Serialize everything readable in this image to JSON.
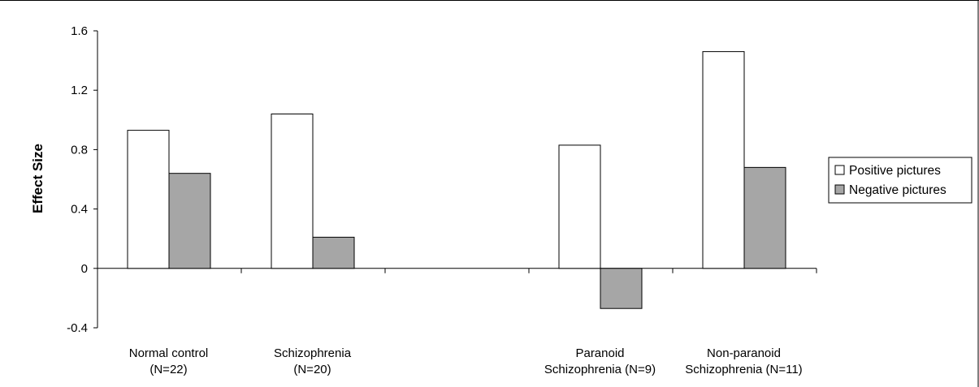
{
  "chart_data": {
    "type": "bar",
    "ylabel": "Effect Size",
    "ylim": [
      -0.4,
      1.6
    ],
    "yticks": [
      "-0.4",
      "0",
      "0.4",
      "0.8",
      "1.2",
      "1.6"
    ],
    "ytick_values": [
      -0.4,
      0,
      0.4,
      0.8,
      1.2,
      1.6
    ],
    "grid": false,
    "legend_position": "right",
    "categories": [
      [
        "Normal control",
        "(N=22)"
      ],
      [
        "Schizophrenia",
        "(N=20)"
      ],
      [
        "",
        ""
      ],
      [
        "Paranoid",
        "Schizophrenia (N=9)"
      ],
      [
        "Non-paranoid",
        "Schizophrenia (N=11)"
      ]
    ],
    "series": [
      {
        "name": "Positive pictures",
        "color": "#ffffff",
        "values": [
          0.93,
          1.04,
          null,
          0.83,
          1.46
        ]
      },
      {
        "name": "Negative pictures",
        "color": "#a6a6a6",
        "values": [
          0.64,
          0.21,
          null,
          -0.27,
          0.68
        ]
      }
    ]
  }
}
